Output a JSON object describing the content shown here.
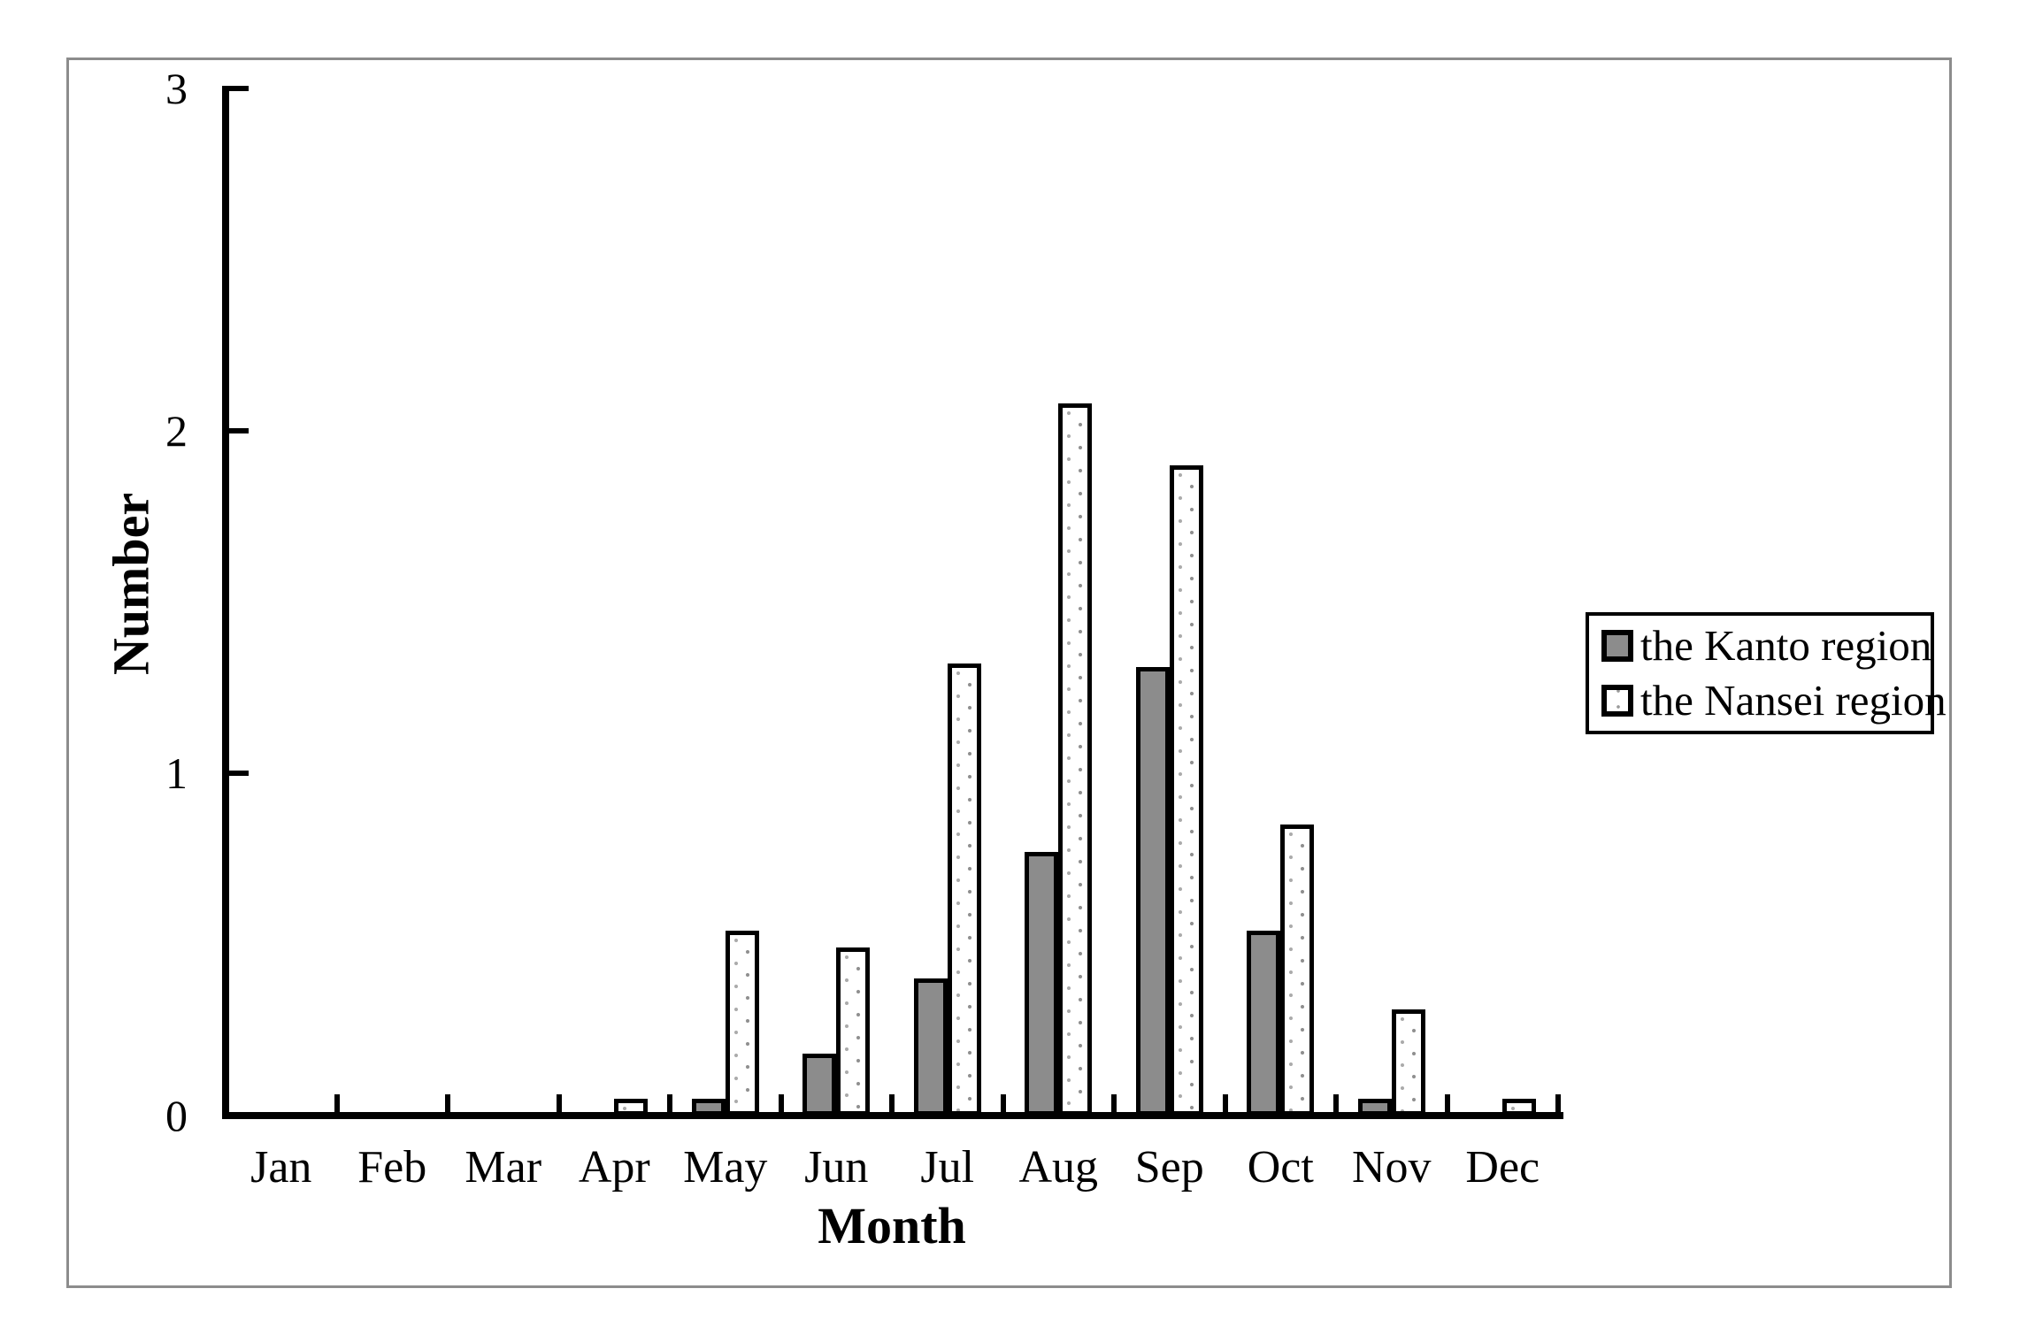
{
  "colors": {
    "kanto_fill": "#8c8c8c",
    "nansei_fill": "#ffffff",
    "bar_border": "#000000",
    "axis_color": "#000000",
    "frame_color": "#8c8c8c",
    "background": "#ffffff"
  },
  "legend": {
    "items": [
      {
        "id": "kanto",
        "label": "the Kanto region",
        "swatch": "gray-filled-square"
      },
      {
        "id": "nansei",
        "label": "the Nansei region",
        "swatch": "white-dotted-square"
      }
    ]
  },
  "chart_data": {
    "type": "bar",
    "title": "",
    "xlabel": "Month",
    "ylabel": "Number",
    "categories": [
      "Jan",
      "Feb",
      "Mar",
      "Apr",
      "May",
      "Jun",
      "Jul",
      "Aug",
      "Sep",
      "Oct",
      "Nov",
      "Dec"
    ],
    "series": [
      {
        "name": "the Kanto region",
        "values": [
          0,
          0,
          0,
          0,
          0.05,
          0.18,
          0.4,
          0.77,
          1.31,
          0.54,
          0.05,
          0
        ]
      },
      {
        "name": "the Nansei region",
        "values": [
          0,
          0,
          0,
          0.05,
          0.54,
          0.49,
          1.32,
          2.08,
          1.9,
          0.85,
          0.31,
          0.05
        ]
      }
    ],
    "ylim": [
      0,
      3
    ],
    "yticks": [
      0,
      1,
      2,
      3
    ],
    "grid": false,
    "legend_position": "middle-right",
    "bar_pattern_nansei": "polka-dot",
    "tick_style": "inside"
  }
}
